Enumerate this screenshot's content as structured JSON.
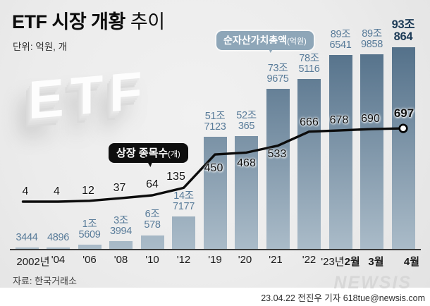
{
  "header": {
    "title_bold": "ETF 시장 개황",
    "title_light": " 추이",
    "unit_label": "단위: 억원, 개"
  },
  "decor": {
    "logo_text": "ETF"
  },
  "callouts": {
    "net_asset": {
      "label": "순자산가치총액",
      "unit": "(억원)"
    },
    "listed_count": {
      "label": "상장 종목수",
      "unit": "(개)"
    }
  },
  "chart_data": {
    "type": "bar+line",
    "title": "ETF 시장 개황 추이",
    "categories": [
      "2002년",
      "'04",
      "'06",
      "'08",
      "'10",
      "'12",
      "'19",
      "'20",
      "'21",
      "'22",
      "'23년2월",
      "3월",
      "4월"
    ],
    "category_parts": [
      {
        "pre": "2002년",
        "bold": ""
      },
      {
        "pre": "'04",
        "bold": ""
      },
      {
        "pre": "'06",
        "bold": ""
      },
      {
        "pre": "'08",
        "bold": ""
      },
      {
        "pre": "'10",
        "bold": ""
      },
      {
        "pre": "'12",
        "bold": ""
      },
      {
        "pre": "'19",
        "bold": ""
      },
      {
        "pre": "'20",
        "bold": ""
      },
      {
        "pre": "'21",
        "bold": ""
      },
      {
        "pre": "'22",
        "bold": ""
      },
      {
        "pre": "'23년",
        "bold": "2월"
      },
      {
        "pre": "",
        "bold": "3월"
      },
      {
        "pre": "",
        "bold": "4월"
      }
    ],
    "series": [
      {
        "name": "순자산가치총액",
        "unit": "억원",
        "type": "bar",
        "values": [
          3444,
          4896,
          15609,
          33994,
          60578,
          147177,
          517123,
          520365,
          739675,
          785116,
          896541,
          899858,
          930864
        ],
        "value_labels": [
          "3444",
          "4896",
          "1조\n5609",
          "3조\n3994",
          "6조\n578",
          "14조\n7177",
          "51조\n7123",
          "52조\n365",
          "73조\n9675",
          "78조\n5116",
          "89조\n6541",
          "89조\n9858",
          "93조\n864"
        ]
      },
      {
        "name": "상장 종목수",
        "unit": "개",
        "type": "line",
        "values": [
          4,
          4,
          12,
          37,
          64,
          135,
          450,
          468,
          533,
          666,
          678,
          690,
          697
        ]
      }
    ],
    "axes": {
      "y_visible": false,
      "x_labels_visible": true,
      "grid": false
    },
    "legend_position": "inline-callouts"
  },
  "colors": {
    "background": "#ececec",
    "bar_top": "#54718a",
    "bar_bottom": "#abbcc9",
    "bar_value_label": "#587b99",
    "bar_value_label_final": "#1d3b57",
    "trend_line": "#0c0c0c",
    "callout_net_asset_bg": "#8ea6b8",
    "callout_listed_bg": "#0e0e0e"
  },
  "footer": {
    "source": "자료: 한국거래소",
    "credit": "23.04.22 전진우 기자 618tue@newsis.com",
    "logo": "NEWSIS"
  }
}
